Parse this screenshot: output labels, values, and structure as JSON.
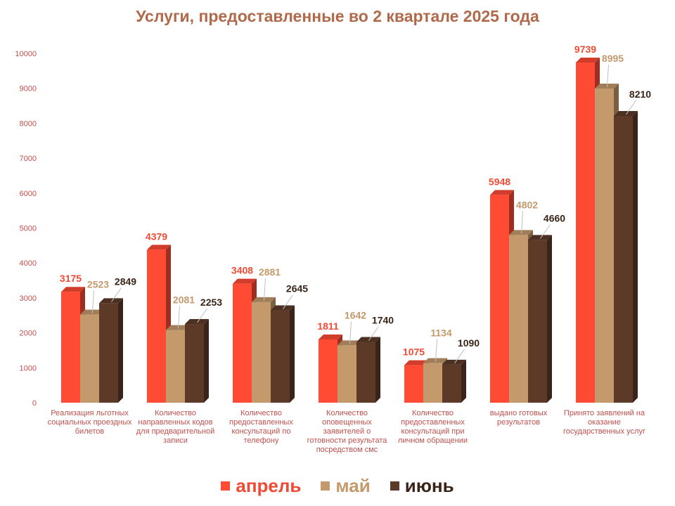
{
  "chart_data": {
    "type": "bar",
    "title": "Услуги, предоставленные во 2 квартале 2025 года",
    "categories": [
      "Реализация льготных социальных проездных билетов",
      "Количество направленных кодов для предварительной записи",
      "Количество предоставленных консультаций   по телефону",
      "Количество оповещенных заявителей о готовности результата посредством смс",
      "Количество предоставленных консультаций  при личном обращении",
      "выдано готовых результатов",
      "Принято заявлений на оказание государственных услуг"
    ],
    "series": [
      {
        "name": "апрель",
        "color": "#ff4b33",
        "label_color": "#f04a34",
        "values": [
          3175,
          4379,
          3408,
          1811,
          1075,
          5948,
          9739
        ]
      },
      {
        "name": "май",
        "color": "#c49a6c",
        "label_color": "#c49a6c",
        "values": [
          2523,
          2081,
          2881,
          1642,
          1134,
          4802,
          8995
        ]
      },
      {
        "name": "июнь",
        "color": "#5d3a28",
        "label_color": "#3a2418",
        "values": [
          2849,
          2253,
          2645,
          1740,
          1090,
          4660,
          8210
        ]
      }
    ],
    "ylim": [
      0,
      10000
    ],
    "yticks": [
      0,
      1000,
      2000,
      3000,
      4000,
      5000,
      6000,
      7000,
      8000,
      9000,
      10000
    ],
    "legend_position": "bottom",
    "grid": false
  }
}
